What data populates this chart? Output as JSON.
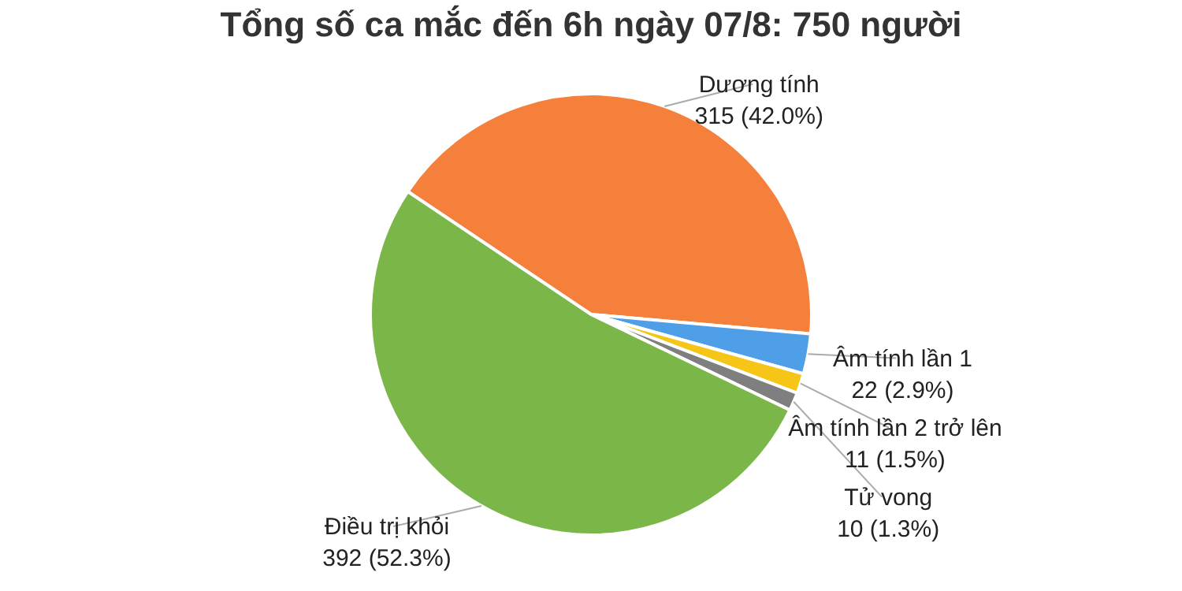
{
  "chart_data": {
    "type": "pie",
    "title": "Tổng số ca mắc đến 6h ngày 07/8: 750 người",
    "categories": [
      "Dương tính",
      "Âm tính lần 1",
      "Âm tính lần 2 trở lên",
      "Tử vong",
      "Điều trị khỏi"
    ],
    "values": [
      315,
      22,
      11,
      10,
      392
    ],
    "colors": [
      "#f4803c",
      "#4f9ee8",
      "#f5c518",
      "#7f7f7f",
      "#7ab648"
    ],
    "value_labels": [
      "315 (42.0%)",
      "22 (2.9%)",
      "11 (1.5%)",
      "10 (1.3%)",
      "392 (52.3%)"
    ]
  }
}
